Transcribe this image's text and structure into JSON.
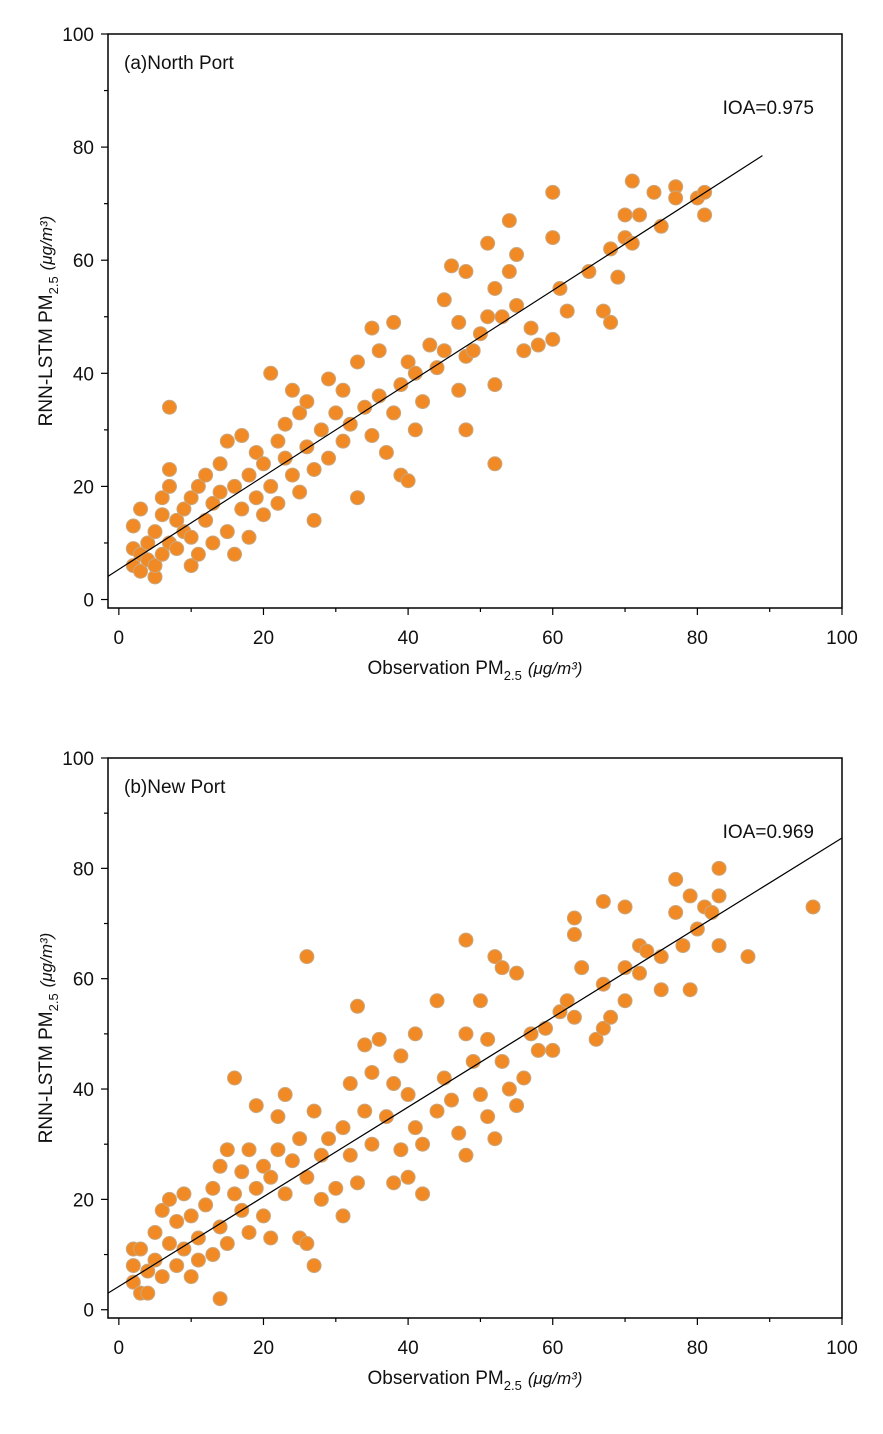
{
  "chart_data": [
    {
      "type": "scatter",
      "title": "(a)North Port",
      "annotation": "IOA=0.975",
      "xlabel": "Observation PM",
      "xlabel_sub": "2.5",
      "xlabel_unit": "(μg/m³)",
      "ylabel": "RNN-LSTM PM",
      "ylabel_sub": "2.5",
      "ylabel_unit": "(μg/m³)",
      "xlim": [
        -1.5,
        100
      ],
      "ylim": [
        -1.5,
        100
      ],
      "xticks": [
        0,
        20,
        40,
        60,
        80,
        100
      ],
      "yticks": [
        0,
        20,
        40,
        60,
        80,
        100
      ],
      "xticks_minor": [
        10,
        30,
        50,
        70,
        90
      ],
      "yticks_minor": [
        10,
        30,
        50,
        70,
        90
      ],
      "color": "#f18a24",
      "x": [
        2,
        2,
        2,
        3,
        3,
        3,
        4,
        4,
        5,
        5,
        5,
        6,
        6,
        6,
        7,
        7,
        7,
        7,
        8,
        8,
        9,
        9,
        10,
        10,
        10,
        11,
        11,
        12,
        12,
        13,
        13,
        14,
        14,
        15,
        15,
        16,
        16,
        17,
        17,
        18,
        18,
        19,
        19,
        20,
        20,
        21,
        21,
        22,
        22,
        23,
        23,
        24,
        24,
        25,
        25,
        26,
        26,
        27,
        27,
        28,
        29,
        29,
        30,
        31,
        31,
        32,
        33,
        33,
        34,
        35,
        35,
        36,
        36,
        37,
        38,
        38,
        39,
        39,
        40,
        40,
        41,
        41,
        42,
        43,
        44,
        45,
        45,
        46,
        47,
        47,
        48,
        48,
        48,
        49,
        50,
        51,
        51,
        52,
        52,
        52,
        53,
        54,
        54,
        55,
        55,
        56,
        57,
        58,
        60,
        60,
        60,
        61,
        62,
        65,
        67,
        68,
        68,
        69,
        70,
        70,
        71,
        71,
        72,
        74,
        75,
        77,
        77,
        80,
        81,
        81
      ],
      "y": [
        13,
        9,
        6,
        16,
        5,
        8,
        7,
        10,
        4,
        6,
        12,
        8,
        15,
        18,
        34,
        23,
        10,
        20,
        14,
        9,
        12,
        16,
        6,
        11,
        18,
        20,
        8,
        14,
        22,
        17,
        10,
        19,
        24,
        12,
        28,
        8,
        20,
        16,
        29,
        22,
        11,
        26,
        18,
        24,
        15,
        40,
        20,
        28,
        17,
        31,
        25,
        37,
        22,
        33,
        19,
        27,
        35,
        14,
        23,
        30,
        25,
        39,
        33,
        28,
        37,
        31,
        18,
        42,
        34,
        48,
        29,
        44,
        36,
        26,
        33,
        49,
        22,
        38,
        21,
        42,
        30,
        40,
        35,
        45,
        41,
        53,
        44,
        59,
        37,
        49,
        30,
        58,
        43,
        44,
        47,
        63,
        50,
        24,
        38,
        55,
        50,
        67,
        58,
        52,
        61,
        44,
        48,
        45,
        72,
        64,
        46,
        55,
        51,
        58,
        51,
        62,
        49,
        57,
        64,
        68,
        74,
        63,
        68,
        72,
        66,
        73,
        71,
        71,
        72,
        68
      ],
      "fit": {
        "x": [
          -1.5,
          89
        ],
        "y": [
          4.1,
          78.5
        ],
        "color": "#000000"
      }
    },
    {
      "type": "scatter",
      "title": "(b)New Port",
      "annotation": "IOA=0.969",
      "xlabel": "Observation PM",
      "xlabel_sub": "2.5",
      "xlabel_unit": "(μg/m³)",
      "ylabel": "RNN-LSTM PM",
      "ylabel_sub": "2.5",
      "ylabel_unit": "(μg/m³)",
      "xlim": [
        -1.5,
        100
      ],
      "ylim": [
        -1.5,
        100
      ],
      "xticks": [
        0,
        20,
        40,
        60,
        80,
        100
      ],
      "yticks": [
        0,
        20,
        40,
        60,
        80,
        100
      ],
      "xticks_minor": [
        10,
        30,
        50,
        70,
        90
      ],
      "yticks_minor": [
        10,
        30,
        50,
        70,
        90
      ],
      "color": "#f18a24",
      "x": [
        2,
        2,
        2,
        3,
        3,
        4,
        4,
        5,
        5,
        6,
        6,
        7,
        7,
        8,
        8,
        9,
        9,
        10,
        10,
        11,
        11,
        12,
        13,
        13,
        14,
        14,
        14,
        15,
        15,
        16,
        16,
        17,
        17,
        18,
        18,
        19,
        19,
        20,
        20,
        21,
        21,
        22,
        22,
        23,
        23,
        24,
        25,
        25,
        26,
        26,
        26,
        27,
        27,
        28,
        28,
        29,
        30,
        31,
        31,
        32,
        32,
        33,
        33,
        34,
        34,
        35,
        35,
        36,
        37,
        38,
        38,
        39,
        39,
        40,
        40,
        41,
        41,
        42,
        42,
        44,
        44,
        45,
        46,
        47,
        48,
        48,
        48,
        49,
        50,
        50,
        51,
        51,
        52,
        52,
        53,
        53,
        54,
        55,
        55,
        56,
        57,
        58,
        59,
        60,
        61,
        62,
        63,
        63,
        63,
        64,
        66,
        67,
        67,
        67,
        68,
        70,
        70,
        70,
        72,
        72,
        73,
        75,
        75,
        77,
        77,
        78,
        79,
        79,
        80,
        81,
        82,
        83,
        83,
        83,
        87,
        96
      ],
      "y": [
        11,
        5,
        8,
        3,
        11,
        3,
        7,
        9,
        14,
        6,
        18,
        12,
        20,
        8,
        16,
        21,
        11,
        6,
        17,
        13,
        9,
        19,
        10,
        22,
        2,
        26,
        15,
        29,
        12,
        42,
        21,
        18,
        25,
        14,
        29,
        37,
        22,
        17,
        26,
        24,
        13,
        35,
        29,
        39,
        21,
        27,
        31,
        13,
        64,
        24,
        12,
        8,
        36,
        28,
        20,
        31,
        22,
        33,
        17,
        41,
        28,
        55,
        23,
        48,
        36,
        43,
        30,
        49,
        35,
        23,
        41,
        46,
        29,
        24,
        39,
        50,
        33,
        21,
        30,
        56,
        36,
        42,
        38,
        32,
        67,
        50,
        28,
        45,
        56,
        39,
        49,
        35,
        64,
        31,
        62,
        45,
        40,
        61,
        37,
        42,
        50,
        47,
        51,
        47,
        54,
        56,
        71,
        68,
        53,
        62,
        49,
        74,
        59,
        51,
        53,
        73,
        62,
        56,
        66,
        61,
        65,
        64,
        58,
        78,
        72,
        66,
        75,
        58,
        69,
        73,
        72,
        75,
        80,
        66,
        64,
        73
      ],
      "fit": {
        "x": [
          -1.5,
          100
        ],
        "y": [
          3,
          85.5
        ],
        "color": "#000000"
      }
    }
  ]
}
